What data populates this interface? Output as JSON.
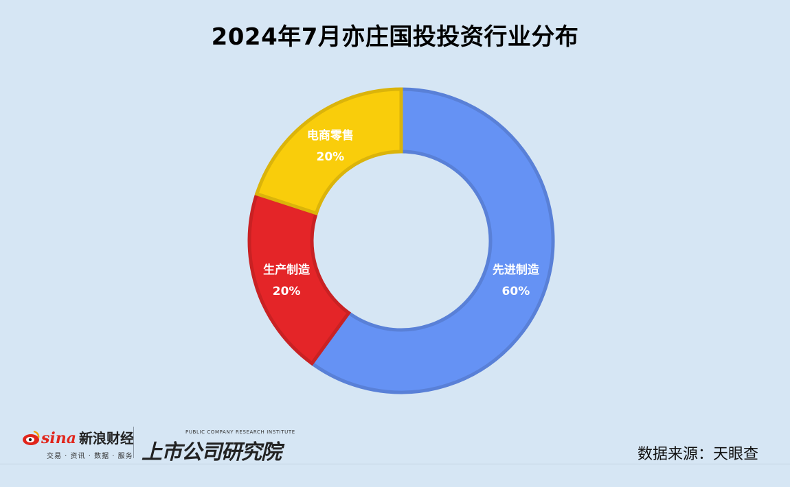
{
  "title": "2024年7月亦庄国投投资行业分布",
  "chart_data": {
    "type": "pie",
    "title": "2024年7月亦庄国投投资行业分布",
    "donut": true,
    "slices": [
      {
        "label": "先进制造",
        "value": 60,
        "display": "60%",
        "color": "#6592f4"
      },
      {
        "label": "生产制造",
        "value": 20,
        "display": "20%",
        "color": "#e42528"
      },
      {
        "label": "电商零售",
        "value": 20,
        "display": "20%",
        "color": "#f9cd0b"
      }
    ]
  },
  "footer": {
    "sina_brand": "sina",
    "sina_name": "新浪财经",
    "sina_sub": "交易 · 资讯 · 数据 · 服务",
    "institute_en": "PUBLIC COMPANY RESEARCH INSTITUTE",
    "institute_cn": "上市公司研究院",
    "source": "数据来源：天眼查"
  }
}
